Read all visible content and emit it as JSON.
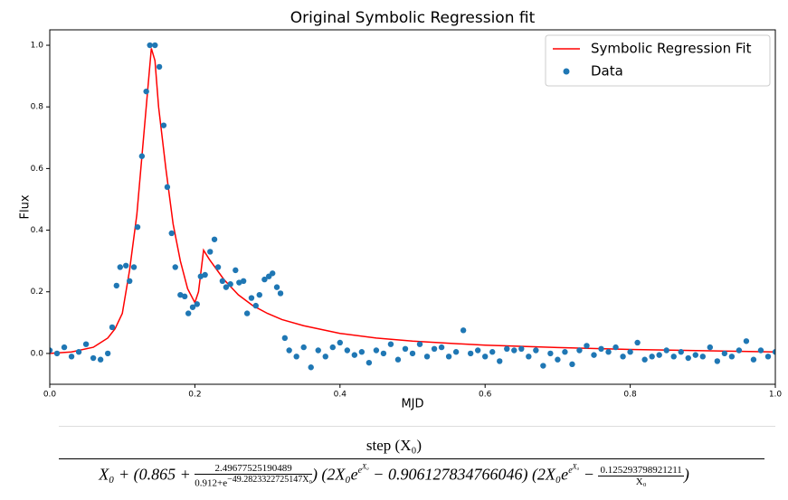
{
  "chart_data": {
    "type": "scatter-line",
    "title": "Original Symbolic Regression fit",
    "xlabel": "MJD",
    "ylabel": "Flux",
    "xlim": [
      0,
      1
    ],
    "ylim": [
      -0.1,
      1.05
    ],
    "xticks": [
      {
        "value": 0,
        "label": "0.0"
      },
      {
        "value": 0.2,
        "label": "0.2"
      },
      {
        "value": 0.4,
        "label": "0.4"
      },
      {
        "value": 0.6,
        "label": "0.6"
      },
      {
        "value": 0.8,
        "label": "0.8"
      },
      {
        "value": 1,
        "label": "1.0"
      }
    ],
    "yticks": [
      {
        "value": 0,
        "label": "0.0"
      },
      {
        "value": 0.2,
        "label": "0.2"
      },
      {
        "value": 0.4,
        "label": "0.4"
      },
      {
        "value": 0.6,
        "label": "0.6"
      },
      {
        "value": 0.8,
        "label": "0.8"
      },
      {
        "value": 1,
        "label": "1.0"
      }
    ],
    "legend": "upper right",
    "series": [
      {
        "name": "Symbolic Regression Fit",
        "type": "line",
        "color": "#ff0000",
        "x": [
          0,
          0.03,
          0.06,
          0.08,
          0.09,
          0.1,
          0.11,
          0.12,
          0.13,
          0.14,
          0.145,
          0.15,
          0.16,
          0.17,
          0.18,
          0.19,
          0.2,
          0.205,
          0.212,
          0.22,
          0.24,
          0.26,
          0.28,
          0.3,
          0.32,
          0.35,
          0.4,
          0.45,
          0.5,
          0.55,
          0.6,
          0.7,
          0.8,
          0.9,
          1.0
        ],
        "values": [
          0,
          0.005,
          0.02,
          0.05,
          0.08,
          0.13,
          0.27,
          0.45,
          0.72,
          0.99,
          0.95,
          0.8,
          0.6,
          0.42,
          0.3,
          0.21,
          0.165,
          0.2,
          0.335,
          0.305,
          0.24,
          0.19,
          0.155,
          0.13,
          0.11,
          0.09,
          0.065,
          0.05,
          0.04,
          0.033,
          0.027,
          0.019,
          0.013,
          0.009,
          0.005
        ]
      },
      {
        "name": "Data",
        "type": "scatter",
        "color": "#1f77b4",
        "x": [
          0,
          0.01,
          0.02,
          0.03,
          0.04,
          0.05,
          0.06,
          0.07,
          0.08,
          0.086,
          0.092,
          0.097,
          0.105,
          0.11,
          0.116,
          0.121,
          0.127,
          0.133,
          0.138,
          0.145,
          0.151,
          0.157,
          0.162,
          0.168,
          0.173,
          0.18,
          0.186,
          0.191,
          0.197,
          0.203,
          0.208,
          0.214,
          0.221,
          0.227,
          0.232,
          0.238,
          0.243,
          0.249,
          0.256,
          0.261,
          0.267,
          0.272,
          0.278,
          0.284,
          0.289,
          0.296,
          0.302,
          0.307,
          0.313,
          0.318,
          0.324,
          0.33,
          0.34,
          0.35,
          0.36,
          0.37,
          0.38,
          0.39,
          0.4,
          0.41,
          0.42,
          0.43,
          0.44,
          0.45,
          0.46,
          0.47,
          0.48,
          0.49,
          0.5,
          0.51,
          0.52,
          0.53,
          0.54,
          0.55,
          0.56,
          0.57,
          0.58,
          0.59,
          0.6,
          0.61,
          0.62,
          0.63,
          0.64,
          0.65,
          0.66,
          0.67,
          0.68,
          0.69,
          0.7,
          0.71,
          0.72,
          0.73,
          0.74,
          0.75,
          0.76,
          0.77,
          0.78,
          0.79,
          0.8,
          0.81,
          0.82,
          0.83,
          0.84,
          0.85,
          0.86,
          0.87,
          0.88,
          0.89,
          0.9,
          0.91,
          0.92,
          0.93,
          0.94,
          0.95,
          0.96,
          0.97,
          0.98,
          0.99,
          1.0
        ],
        "values": [
          0.01,
          0.0,
          0.02,
          -0.01,
          0.005,
          0.03,
          -0.015,
          -0.02,
          0.0,
          0.085,
          0.22,
          0.28,
          0.285,
          0.235,
          0.28,
          0.41,
          0.64,
          0.85,
          1.0,
          1.0,
          0.93,
          0.74,
          0.54,
          0.39,
          0.28,
          0.19,
          0.185,
          0.13,
          0.15,
          0.16,
          0.25,
          0.255,
          0.33,
          0.37,
          0.28,
          0.235,
          0.215,
          0.225,
          0.27,
          0.23,
          0.235,
          0.13,
          0.18,
          0.155,
          0.19,
          0.24,
          0.25,
          0.26,
          0.215,
          0.195,
          0.05,
          0.01,
          -0.01,
          0.02,
          -0.045,
          0.01,
          -0.01,
          0.02,
          0.035,
          0.01,
          -0.005,
          0.005,
          -0.03,
          0.01,
          0.0,
          0.03,
          -0.02,
          0.015,
          0.0,
          0.03,
          -0.01,
          0.015,
          0.02,
          -0.01,
          0.005,
          0.075,
          0.0,
          0.01,
          -0.01,
          0.005,
          -0.025,
          0.015,
          0.01,
          0.015,
          -0.01,
          0.01,
          -0.04,
          0.0,
          -0.02,
          0.005,
          -0.035,
          0.01,
          0.025,
          -0.005,
          0.015,
          0.005,
          0.02,
          -0.01,
          0.005,
          0.035,
          -0.02,
          -0.01,
          -0.005,
          0.01,
          -0.01,
          0.005,
          -0.015,
          -0.005,
          -0.01,
          0.02,
          -0.025,
          0.0,
          -0.01,
          0.01,
          0.04,
          -0.02,
          0.01,
          -0.01,
          0.005
        ]
      }
    ]
  },
  "formula": {
    "numerator": "step (X₀)",
    "prefix": "X₀ + (0.865 + ",
    "frac1_num": "2.49677525190489",
    "frac1_den": "0.912+e",
    "frac1_den_exp": "−49.2823322725147X₀",
    "mid1": ") (2X₀e",
    "exp1": "e",
    "exp1_exp": "X₀",
    "mid2": " − 0.906127834766046) (2X₀e",
    "exp2": "e",
    "exp2_exp": "X₀",
    "mid3": " − ",
    "frac2_num": "0.125293798921211",
    "frac2_den": "X₀",
    "suffix": ")"
  }
}
